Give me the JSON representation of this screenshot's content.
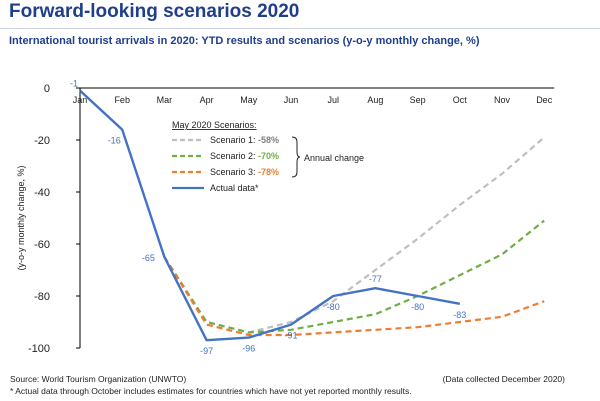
{
  "header": {
    "title": "Forward-looking scenarios 2020",
    "subtitle": "International tourist arrivals in 2020: YTD results and scenarios (y-o-y monthly change, %)"
  },
  "footer": {
    "source": "Source: World Tourism Organization (UNWTO)",
    "note": "* Actual data through October includes estimates for countries which have not yet reported monthly results.",
    "collected": "(Data collected December 2020)"
  },
  "legend": {
    "heading": "May 2020 Scenarios:",
    "annual_change_label": "Annual change",
    "scenario1_label": "Scenario 1: ",
    "scenario1_value": "-58%",
    "scenario2_label": "Scenario 2: ",
    "scenario2_value": "-70%",
    "scenario3_label": "Scenario 3: ",
    "scenario3_value": "-78%",
    "actual_label": "Actual data*"
  },
  "chart_data": {
    "type": "line",
    "title": "Forward-looking scenarios 2020",
    "subtitle": "International tourist arrivals in 2020: YTD results and scenarios (y-o-y monthly change, %)",
    "ylabel": "(y-o-y monthly change, %)",
    "xlabel": "",
    "categories": [
      "Jan",
      "Feb",
      "Mar",
      "Apr",
      "May",
      "Jun",
      "Jul",
      "Aug",
      "Sep",
      "Oct",
      "Nov",
      "Dec"
    ],
    "ylim": [
      -100,
      0
    ],
    "yticks": [
      0,
      -20,
      -40,
      -60,
      -80,
      -100
    ],
    "grid": false,
    "legend_position": "center",
    "series": [
      {
        "name": "Scenario 1",
        "annual": "-58%",
        "color": "#bfbfbf",
        "dashed": true,
        "values": [
          null,
          null,
          -65,
          -90,
          -94,
          -90,
          -82,
          -70,
          -58,
          -45,
          -33,
          -19
        ]
      },
      {
        "name": "Scenario 2",
        "annual": "-70%",
        "color": "#70ad47",
        "dashed": true,
        "values": [
          null,
          null,
          -65,
          -90,
          -94,
          -93,
          -90,
          -87,
          -80,
          -72,
          -64,
          -51
        ]
      },
      {
        "name": "Scenario 3",
        "annual": "-78%",
        "color": "#ed7d31",
        "dashed": true,
        "values": [
          null,
          null,
          -65,
          -91,
          -95,
          -95,
          -94,
          -93,
          -92,
          -90,
          -88,
          -82
        ]
      },
      {
        "name": "Actual data*",
        "color": "#4472c4",
        "dashed": false,
        "values": [
          -1,
          -16,
          -65,
          -97,
          -96,
          -91,
          -80,
          -77,
          -80,
          -83,
          null,
          null
        ]
      }
    ],
    "data_labels": [
      "-1",
      "-16",
      "-65",
      "-97",
      "-96",
      "-91",
      "-80",
      "-77",
      "-80",
      "-83"
    ]
  }
}
